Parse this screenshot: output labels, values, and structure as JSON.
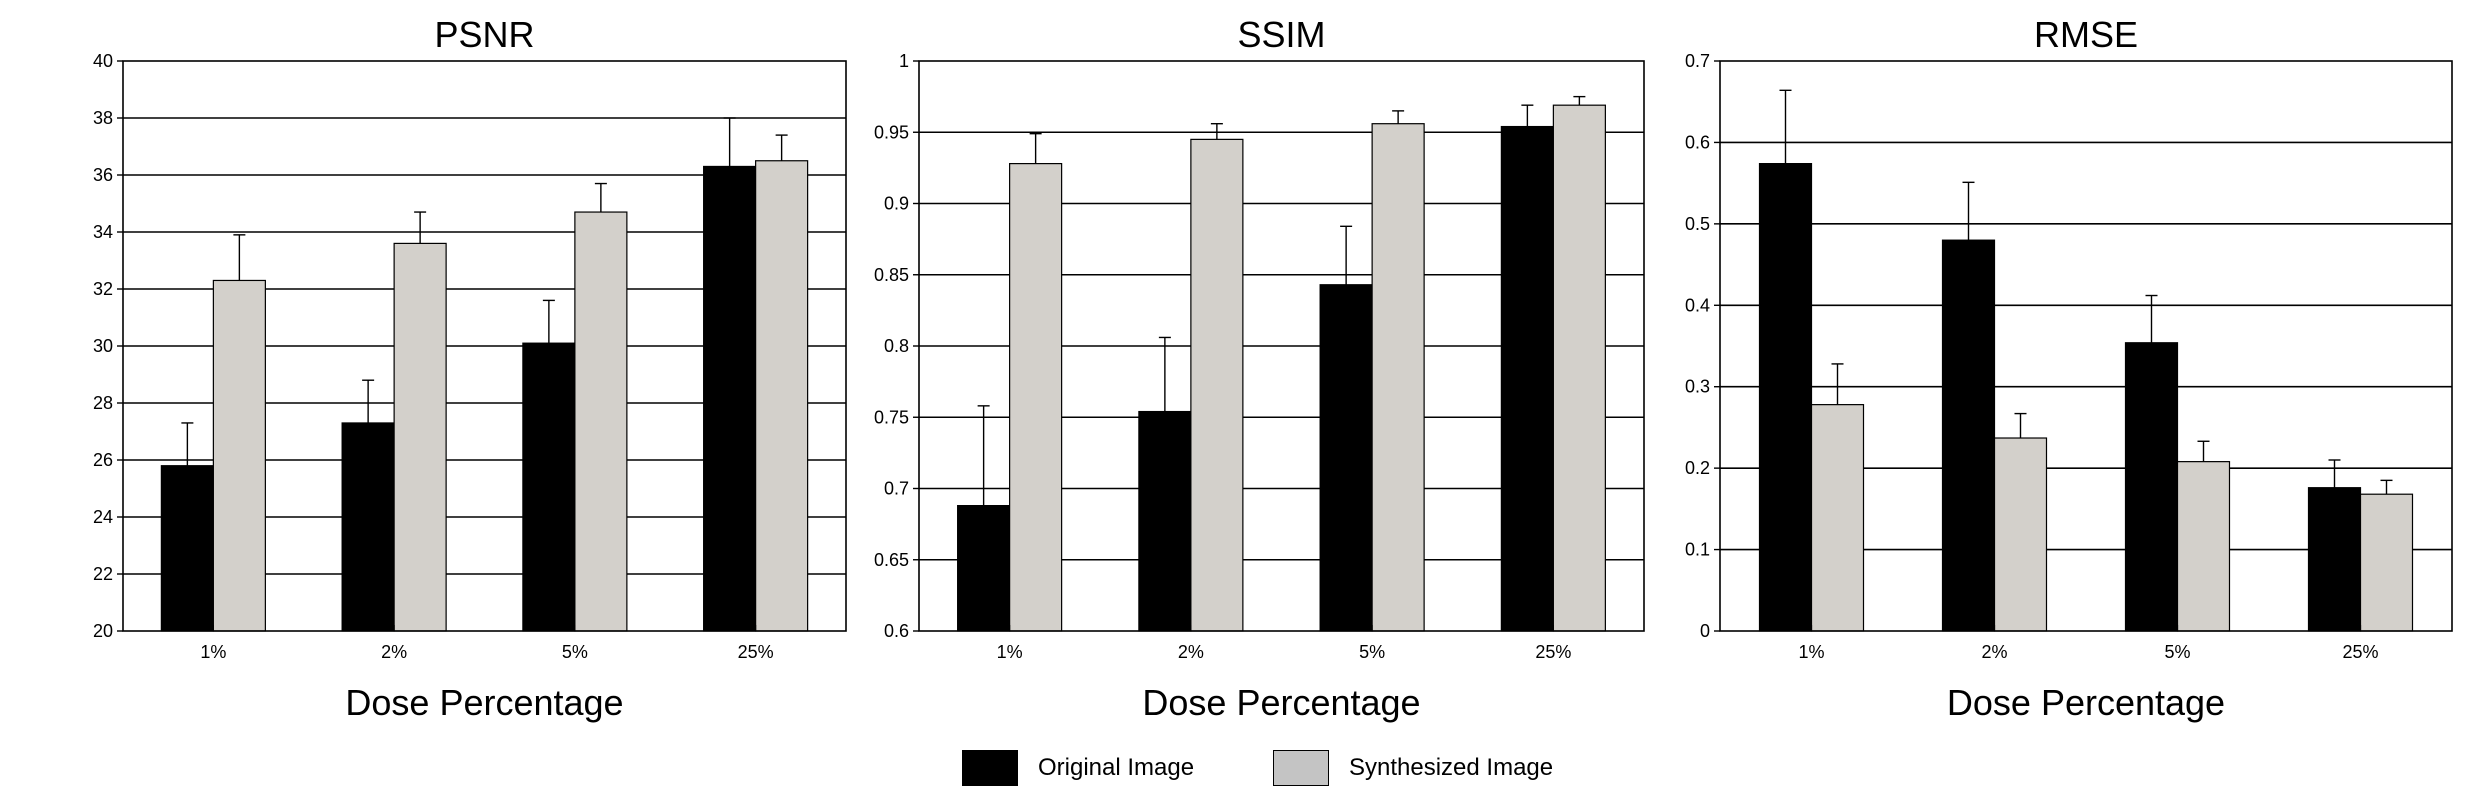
{
  "colors": {
    "original": "#000000",
    "synthesized": "#d3d0cb",
    "legend_synthesized": "#c4c4c4",
    "axis": "#000000"
  },
  "legend": [
    {
      "key": "original",
      "label": "Original Image"
    },
    {
      "key": "synthesized",
      "label": "Synthesized Image"
    }
  ],
  "chart_data": [
    {
      "type": "bar",
      "title": "PSNR",
      "xlabel": "Dose Percentage",
      "ylabel": "",
      "categories": [
        "1%",
        "2%",
        "5%",
        "25%"
      ],
      "ylim": [
        20,
        40
      ],
      "yticks": [
        20,
        22,
        24,
        26,
        28,
        30,
        32,
        34,
        36,
        38,
        40
      ],
      "ytick_labels": [
        "20",
        "22",
        "24",
        "26",
        "28",
        "30",
        "32",
        "34",
        "36",
        "38",
        "40"
      ],
      "grid": true,
      "series": [
        {
          "name": "Original Image",
          "key": "original",
          "values": [
            25.8,
            27.3,
            30.1,
            36.3
          ],
          "errors": [
            1.5,
            1.5,
            1.5,
            1.7
          ]
        },
        {
          "name": "Synthesized Image",
          "key": "synthesized",
          "values": [
            32.3,
            33.6,
            34.7,
            36.5
          ],
          "errors": [
            1.6,
            1.1,
            1.0,
            0.9
          ]
        }
      ]
    },
    {
      "type": "bar",
      "title": "SSIM",
      "xlabel": "Dose Percentage",
      "ylabel": "",
      "categories": [
        "1%",
        "2%",
        "5%",
        "25%"
      ],
      "ylim": [
        0.6,
        1
      ],
      "yticks": [
        0.6,
        0.65,
        0.7,
        0.75,
        0.8,
        0.85,
        0.9,
        0.95,
        1
      ],
      "ytick_labels": [
        "0.6",
        "0.65",
        "0.7",
        "0.75",
        "0.8",
        "0.85",
        "0.9",
        "0.95",
        "1"
      ],
      "grid": true,
      "series": [
        {
          "name": "Original Image",
          "key": "original",
          "values": [
            0.688,
            0.754,
            0.843,
            0.954
          ],
          "errors": [
            0.07,
            0.052,
            0.041,
            0.015
          ]
        },
        {
          "name": "Synthesized Image",
          "key": "synthesized",
          "values": [
            0.928,
            0.945,
            0.956,
            0.969
          ],
          "errors": [
            0.021,
            0.011,
            0.009,
            0.006
          ]
        }
      ]
    },
    {
      "type": "bar",
      "title": "RMSE",
      "xlabel": "Dose Percentage",
      "ylabel": "",
      "categories": [
        "1%",
        "2%",
        "5%",
        "25%"
      ],
      "ylim": [
        0,
        0.7
      ],
      "yticks": [
        0,
        0.1,
        0.2,
        0.3,
        0.4,
        0.5,
        0.6,
        0.7
      ],
      "ytick_labels": [
        "0",
        "0.1",
        "0.2",
        "0.3",
        "0.4",
        "0.5",
        "0.6",
        "0.7"
      ],
      "grid": true,
      "series": [
        {
          "name": "Original Image",
          "key": "original",
          "values": [
            0.574,
            0.48,
            0.354,
            0.176
          ],
          "errors": [
            0.09,
            0.071,
            0.058,
            0.034
          ]
        },
        {
          "name": "Synthesized Image",
          "key": "synthesized",
          "values": [
            0.278,
            0.237,
            0.208,
            0.168
          ],
          "errors": [
            0.05,
            0.03,
            0.025,
            0.017
          ]
        }
      ]
    }
  ]
}
